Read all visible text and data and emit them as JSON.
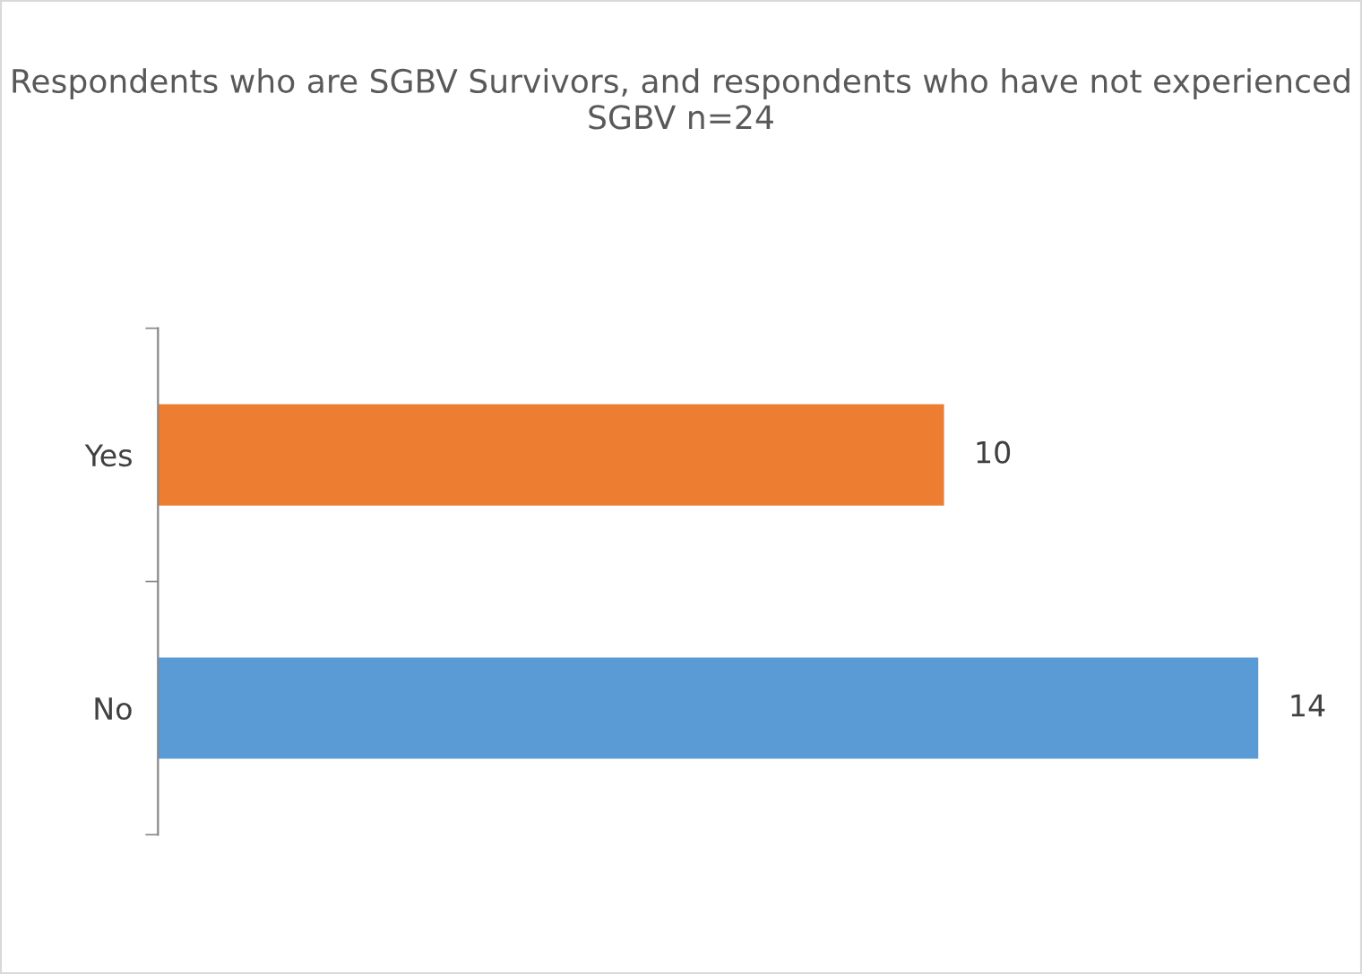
{
  "chart_data": {
    "type": "bar",
    "orientation": "horizontal",
    "title": "Respondents who are SGBV Survivors, and respondents who have not experienced SGBV n=24",
    "categories": [
      "Yes",
      "No"
    ],
    "values": [
      10,
      14
    ],
    "colors": [
      "#ed7d31",
      "#5b9bd5"
    ],
    "data_labels": true,
    "grid": false,
    "legend": false
  }
}
